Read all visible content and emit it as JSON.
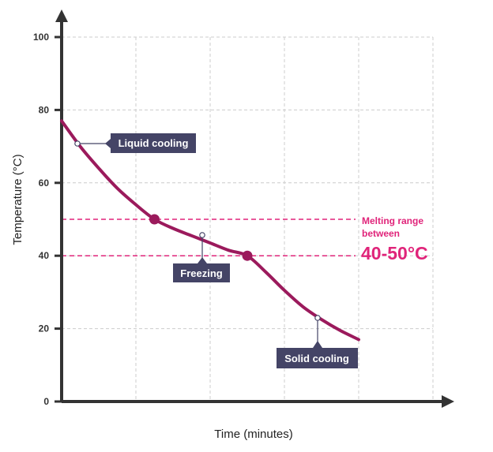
{
  "chart_data": {
    "type": "line",
    "xlabel": "Time (minutes)",
    "ylabel": "Temperature (°C)",
    "ylim": [
      0,
      100
    ],
    "yticks": [
      0,
      20,
      40,
      60,
      80,
      100
    ],
    "grid": true,
    "series": [
      {
        "x": [
          0,
          0.25,
          0.5,
          0.75,
          1.0,
          1.25,
          1.5,
          1.75,
          2.0,
          2.25,
          2.5,
          2.75,
          3.0,
          3.25,
          3.5,
          3.75,
          4.0
        ],
        "y": [
          77,
          70,
          64,
          58.5,
          54,
          50,
          47.5,
          45.5,
          43.5,
          41.5,
          40,
          35.5,
          30.5,
          26,
          22.5,
          19.5,
          17
        ]
      }
    ],
    "points": [
      {
        "x": 1.25,
        "y": 50
      },
      {
        "x": 2.5,
        "y": 40
      }
    ],
    "reference_lines": [
      50,
      40
    ],
    "colors": {
      "curve": "#9b1a5c",
      "reference": "#e0247a",
      "callout_bg": "#444466",
      "axis": "#333333",
      "grid": "#cccccc"
    }
  },
  "annotations": {
    "liquid": "Liquid cooling",
    "freezing": "Freezing",
    "solid": "Solid cooling",
    "melting_line1": "Melting range",
    "melting_line2": "between",
    "melting_range": "40-50°C"
  }
}
